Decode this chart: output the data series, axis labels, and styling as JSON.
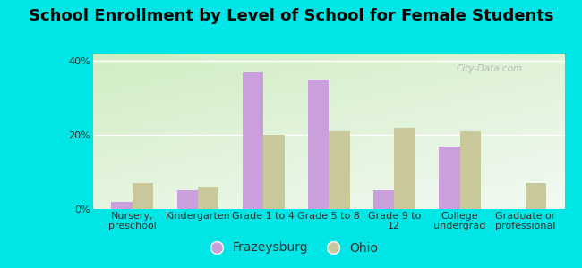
{
  "title": "School Enrollment by Level of School for Female Students",
  "categories": [
    "Nursery,\npreschool",
    "Kindergarten",
    "Grade 1 to 4",
    "Grade 5 to 8",
    "Grade 9 to\n12",
    "College\nundergrad",
    "Graduate or\nprofessional"
  ],
  "frazeysburg": [
    2.0,
    5.0,
    37.0,
    35.0,
    5.0,
    17.0,
    0.0
  ],
  "ohio": [
    7.0,
    6.0,
    20.0,
    21.0,
    22.0,
    21.0,
    7.0
  ],
  "frazeysburg_color": "#c9a0dc",
  "ohio_color": "#c8c89a",
  "background_color": "#00e5e5",
  "ylim": [
    0,
    42
  ],
  "yticks": [
    0,
    20,
    40
  ],
  "ytick_labels": [
    "0%",
    "20%",
    "40%"
  ],
  "bar_width": 0.32,
  "title_fontsize": 13,
  "tick_fontsize": 8,
  "legend_fontsize": 10,
  "watermark": "City-Data.com"
}
